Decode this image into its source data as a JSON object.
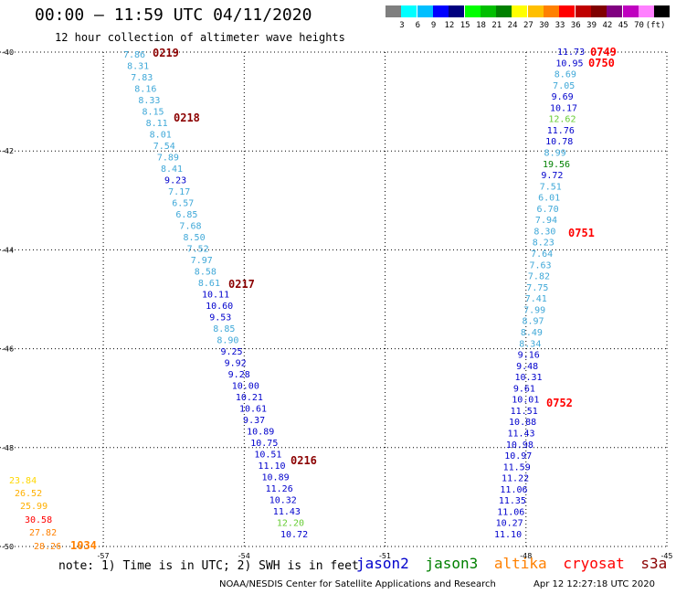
{
  "header": {
    "title": "00:00 – 11:59 UTC 04/11/2020",
    "subtitle": "12 hour collection of altimeter wave heights"
  },
  "colorbar": {
    "colors": [
      "#7f7f7f",
      "#00ffff",
      "#00bfff",
      "#0000ff",
      "#00007f",
      "#00ff00",
      "#00bf00",
      "#008000",
      "#ffff00",
      "#ffbf00",
      "#ff8000",
      "#ff0000",
      "#bf0000",
      "#800000",
      "#800080",
      "#bf00bf",
      "#ff80ff",
      "#000000"
    ],
    "labels": [
      "3",
      "6",
      "9",
      "12",
      "15",
      "18",
      "21",
      "24",
      "27",
      "30",
      "33",
      "36",
      "39",
      "42",
      "45",
      "70",
      "(ft)"
    ]
  },
  "chart_data": {
    "type": "scatter",
    "title": "",
    "xlabel": "",
    "ylabel": "",
    "xlim": [
      -59.2,
      -45
    ],
    "ylim": [
      -50,
      -40
    ],
    "grid": true,
    "x_ticks": [
      "-57",
      "-54",
      "-51",
      "-48",
      "-45"
    ],
    "y_ticks": [
      "-40",
      "-42",
      "-44",
      "-46",
      "-48",
      "-50"
    ],
    "left_tracks": [
      {
        "color": "#3fa8d8",
        "values": [
          "7.86",
          "8.31",
          "7.83",
          "8.16",
          "8.33",
          "8.15",
          "8.11",
          "8.01",
          "7.54",
          "7.89",
          "8.41"
        ]
      },
      {
        "color": "#0000cc",
        "values": [
          "9.23"
        ]
      },
      {
        "color": "#3fa8d8",
        "values": [
          "7.17",
          "6.57",
          "6.85",
          "7.68",
          "8.50",
          "7.52",
          "7.97",
          "8.58",
          "8.61"
        ]
      },
      {
        "color": "#0000cc",
        "values": [
          "10.11",
          "10.60",
          "9.53"
        ]
      },
      {
        "color": "#3fa8d8",
        "values": [
          "8.85",
          "8.90"
        ]
      },
      {
        "color": "#0000cc",
        "values": [
          "9.25",
          "9.92",
          "9.28",
          "10.00",
          "10.21",
          "10.61",
          "9.37",
          "10.89",
          "10.75",
          "10.51",
          "11.10",
          "10.89",
          "11.26",
          "10.32",
          "11.43"
        ]
      },
      {
        "color": "#66cc33",
        "values": [
          "12.20"
        ]
      },
      {
        "color": "#0000cc",
        "values": [
          "10.72"
        ]
      }
    ],
    "right_tracks": [
      {
        "color": "#0000cc",
        "values": [
          "11.73",
          "10.95"
        ]
      },
      {
        "color": "#3fa8d8",
        "values": [
          "8.69",
          "7.05"
        ]
      },
      {
        "color": "#0000cc",
        "values": [
          "9.69",
          "10.17"
        ]
      },
      {
        "color": "#66cc33",
        "values": [
          "12.62"
        ]
      },
      {
        "color": "#0000cc",
        "values": [
          "11.76",
          "10.78"
        ]
      },
      {
        "color": "#3fa8d8",
        "values": [
          "8.99"
        ]
      },
      {
        "color": "#008000",
        "values": [
          "19.56"
        ]
      },
      {
        "color": "#0000cc",
        "values": [
          "9.72"
        ]
      },
      {
        "color": "#3fa8d8",
        "values": [
          "7.51",
          "6.01",
          "6.70",
          "7.94",
          "8.30",
          "8.23",
          "7.64",
          "7.63",
          "7.82",
          "7.75",
          "7.41",
          "7.99",
          "8.97",
          "8.49",
          "8.34"
        ]
      },
      {
        "color": "#0000cc",
        "values": [
          "9.16",
          "9.48",
          "10.31",
          "9.61",
          "10.01",
          "11.51",
          "10.88",
          "11.43",
          "10.98",
          "10.97",
          "11.59",
          "11.22",
          "11.06",
          "11.35",
          "11.06",
          "10.27",
          "11.10"
        ]
      }
    ],
    "corner_values": [
      {
        "value": "23.84",
        "color": "#ffd700"
      },
      {
        "value": "26.52",
        "color": "#ffb000"
      },
      {
        "value": "25.99",
        "color": "#ffb000"
      },
      {
        "value": "30.58",
        "color": "#ff0000"
      },
      {
        "value": "27.82",
        "color": "#ff8000"
      },
      {
        "value": "28.26",
        "color": "#ff8000"
      }
    ],
    "time_labels": [
      {
        "text": "0219",
        "color": "#8b0000"
      },
      {
        "text": "0218",
        "color": "#8b0000"
      },
      {
        "text": "0217",
        "color": "#8b0000"
      },
      {
        "text": "0216",
        "color": "#8b0000"
      },
      {
        "text": "1034",
        "color": "#ff8000"
      },
      {
        "text": "0749",
        "color": "#ff0000"
      },
      {
        "text": "0750",
        "color": "#ff0000"
      },
      {
        "text": "0751",
        "color": "#ff0000"
      },
      {
        "text": "0752",
        "color": "#ff0000"
      }
    ]
  },
  "footer": {
    "note": "note: 1) Time is in UTC; 2) SWH is in feet",
    "legend": [
      {
        "name": "jason2",
        "color": "#0000cc"
      },
      {
        "name": "jason3",
        "color": "#008000"
      },
      {
        "name": "altika",
        "color": "#ff8000"
      },
      {
        "name": "cryosat",
        "color": "#ff0000"
      },
      {
        "name": "s3a",
        "color": "#8b0000"
      }
    ],
    "credit": "NOAA/NESDIS Center for Satellite Applications and Research",
    "timestamp": "Apr 12 12:27:18 UTC 2020"
  }
}
